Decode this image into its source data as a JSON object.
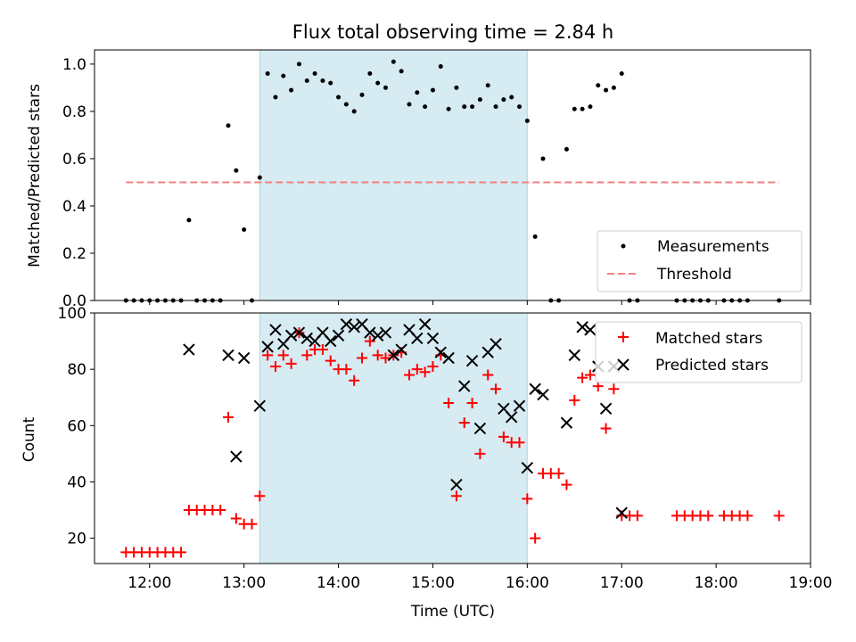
{
  "chart_data": [
    {
      "type": "scatter",
      "title": "Flux total observing time = 2.84 h",
      "xlabel": "",
      "ylabel": "Matched/Predicted stars",
      "xlim": [
        "11:25",
        "19:00"
      ],
      "ylim": [
        0,
        1.06
      ],
      "yticks": [
        "0.0",
        "0.2",
        "0.4",
        "0.6",
        "0.8",
        "1.0"
      ],
      "shaded_region": {
        "start": "13:10",
        "end": "16:00",
        "color": "#add8e6"
      },
      "legend": {
        "position": "bottom-right",
        "entries": [
          "Measurements",
          "Threshold"
        ]
      },
      "threshold": {
        "name": "Threshold",
        "y": 0.5,
        "x_start": "11:45",
        "x_end": "18:40",
        "color": "#f08080"
      },
      "series": [
        {
          "name": "Measurements",
          "color": "#000000",
          "points": [
            [
              "11:45",
              0
            ],
            [
              "11:50",
              0
            ],
            [
              "11:55",
              0
            ],
            [
              "12:00",
              0
            ],
            [
              "12:05",
              0
            ],
            [
              "12:10",
              0
            ],
            [
              "12:15",
              0
            ],
            [
              "12:20",
              0
            ],
            [
              "12:25",
              0.34
            ],
            [
              "12:30",
              0
            ],
            [
              "12:35",
              0
            ],
            [
              "12:40",
              0
            ],
            [
              "12:45",
              0
            ],
            [
              "12:50",
              0.74
            ],
            [
              "12:55",
              0.55
            ],
            [
              "13:00",
              0.3
            ],
            [
              "13:05",
              0
            ],
            [
              "13:10",
              0.52
            ],
            [
              "13:15",
              0.96
            ],
            [
              "13:20",
              0.86
            ],
            [
              "13:25",
              0.95
            ],
            [
              "13:30",
              0.89
            ],
            [
              "13:35",
              1.0
            ],
            [
              "13:40",
              0.93
            ],
            [
              "13:45",
              0.96
            ],
            [
              "13:50",
              0.93
            ],
            [
              "13:55",
              0.92
            ],
            [
              "14:00",
              0.86
            ],
            [
              "14:05",
              0.83
            ],
            [
              "14:10",
              0.8
            ],
            [
              "14:15",
              0.87
            ],
            [
              "14:20",
              0.96
            ],
            [
              "14:25",
              0.92
            ],
            [
              "14:30",
              0.9
            ],
            [
              "14:35",
              1.01
            ],
            [
              "14:40",
              0.97
            ],
            [
              "14:45",
              0.83
            ],
            [
              "14:50",
              0.88
            ],
            [
              "14:55",
              0.82
            ],
            [
              "15:00",
              0.89
            ],
            [
              "15:05",
              0.99
            ],
            [
              "15:10",
              0.81
            ],
            [
              "15:15",
              0.9
            ],
            [
              "15:20",
              0.82
            ],
            [
              "15:25",
              0.82
            ],
            [
              "15:30",
              0.85
            ],
            [
              "15:35",
              0.91
            ],
            [
              "15:40",
              0.82
            ],
            [
              "15:45",
              0.85
            ],
            [
              "15:50",
              0.86
            ],
            [
              "15:55",
              0.82
            ],
            [
              "16:00",
              0.76
            ],
            [
              "16:05",
              0.27
            ],
            [
              "16:10",
              0.6
            ],
            [
              "16:15",
              0
            ],
            [
              "16:20",
              0
            ],
            [
              "16:25",
              0.64
            ],
            [
              "16:30",
              0.81
            ],
            [
              "16:35",
              0.81
            ],
            [
              "16:40",
              0.82
            ],
            [
              "16:45",
              0.91
            ],
            [
              "16:50",
              0.89
            ],
            [
              "16:55",
              0.9
            ],
            [
              "17:00",
              0.96
            ],
            [
              "17:05",
              0
            ],
            [
              "17:10",
              0
            ],
            [
              "17:35",
              0
            ],
            [
              "17:40",
              0
            ],
            [
              "17:45",
              0
            ],
            [
              "17:50",
              0
            ],
            [
              "17:55",
              0
            ],
            [
              "18:05",
              0
            ],
            [
              "18:10",
              0
            ],
            [
              "18:15",
              0
            ],
            [
              "18:20",
              0
            ],
            [
              "18:40",
              0
            ]
          ]
        }
      ]
    },
    {
      "type": "scatter",
      "title": "",
      "xlabel": "Time (UTC)",
      "ylabel": "Count",
      "xlim": [
        "11:25",
        "19:00"
      ],
      "ylim": [
        11,
        100
      ],
      "xticks": [
        "12:00",
        "13:00",
        "14:00",
        "15:00",
        "16:00",
        "17:00",
        "18:00",
        "19:00"
      ],
      "yticks": [
        "20",
        "40",
        "60",
        "80",
        "100"
      ],
      "shaded_region": {
        "start": "13:10",
        "end": "16:00",
        "color": "#add8e6"
      },
      "legend": {
        "position": "top-right",
        "entries": [
          "Matched stars",
          "Predicted stars"
        ]
      },
      "series": [
        {
          "name": "Matched stars",
          "marker": "plus",
          "color": "#ff0000",
          "points": [
            [
              "11:45",
              15
            ],
            [
              "11:50",
              15
            ],
            [
              "11:55",
              15
            ],
            [
              "12:00",
              15
            ],
            [
              "12:05",
              15
            ],
            [
              "12:10",
              15
            ],
            [
              "12:15",
              15
            ],
            [
              "12:20",
              15
            ],
            [
              "12:25",
              30
            ],
            [
              "12:30",
              30
            ],
            [
              "12:35",
              30
            ],
            [
              "12:40",
              30
            ],
            [
              "12:45",
              30
            ],
            [
              "12:50",
              63
            ],
            [
              "12:55",
              27
            ],
            [
              "13:00",
              25
            ],
            [
              "13:05",
              25
            ],
            [
              "13:10",
              35
            ],
            [
              "13:15",
              85
            ],
            [
              "13:20",
              81
            ],
            [
              "13:25",
              85
            ],
            [
              "13:30",
              82
            ],
            [
              "13:35",
              93
            ],
            [
              "13:40",
              85
            ],
            [
              "13:45",
              87
            ],
            [
              "13:50",
              87
            ],
            [
              "13:55",
              83
            ],
            [
              "14:00",
              80
            ],
            [
              "14:05",
              80
            ],
            [
              "14:10",
              76
            ],
            [
              "14:15",
              84
            ],
            [
              "14:20",
              90
            ],
            [
              "14:25",
              85
            ],
            [
              "14:30",
              84
            ],
            [
              "14:35",
              85
            ],
            [
              "14:40",
              86
            ],
            [
              "14:45",
              78
            ],
            [
              "14:50",
              80
            ],
            [
              "14:55",
              79
            ],
            [
              "15:00",
              81
            ],
            [
              "15:05",
              85
            ],
            [
              "15:10",
              68
            ],
            [
              "15:15",
              35
            ],
            [
              "15:20",
              61
            ],
            [
              "15:25",
              68
            ],
            [
              "15:30",
              50
            ],
            [
              "15:35",
              78
            ],
            [
              "15:40",
              73
            ],
            [
              "15:45",
              56
            ],
            [
              "15:50",
              54
            ],
            [
              "15:55",
              54
            ],
            [
              "16:00",
              34
            ],
            [
              "16:05",
              20
            ],
            [
              "16:10",
              43
            ],
            [
              "16:15",
              43
            ],
            [
              "16:20",
              43
            ],
            [
              "16:25",
              39
            ],
            [
              "16:30",
              69
            ],
            [
              "16:35",
              77
            ],
            [
              "16:40",
              78
            ],
            [
              "16:45",
              74
            ],
            [
              "16:50",
              59
            ],
            [
              "16:55",
              73
            ],
            [
              "17:00",
              28
            ],
            [
              "17:05",
              28
            ],
            [
              "17:10",
              28
            ],
            [
              "17:35",
              28
            ],
            [
              "17:40",
              28
            ],
            [
              "17:45",
              28
            ],
            [
              "17:50",
              28
            ],
            [
              "17:55",
              28
            ],
            [
              "18:05",
              28
            ],
            [
              "18:10",
              28
            ],
            [
              "18:15",
              28
            ],
            [
              "18:20",
              28
            ],
            [
              "18:40",
              28
            ]
          ]
        },
        {
          "name": "Predicted stars",
          "marker": "x",
          "color": "#000000",
          "points": [
            [
              "12:25",
              87
            ],
            [
              "12:50",
              85
            ],
            [
              "12:55",
              49
            ],
            [
              "13:00",
              84
            ],
            [
              "13:10",
              67
            ],
            [
              "13:15",
              88
            ],
            [
              "13:20",
              94
            ],
            [
              "13:25",
              89
            ],
            [
              "13:30",
              92
            ],
            [
              "13:35",
              93
            ],
            [
              "13:40",
              91
            ],
            [
              "13:45",
              90
            ],
            [
              "13:50",
              93
            ],
            [
              "13:55",
              90
            ],
            [
              "14:00",
              92
            ],
            [
              "14:05",
              96
            ],
            [
              "14:10",
              95
            ],
            [
              "14:15",
              96
            ],
            [
              "14:20",
              93
            ],
            [
              "14:25",
              92
            ],
            [
              "14:30",
              93
            ],
            [
              "14:35",
              85
            ],
            [
              "14:40",
              87
            ],
            [
              "14:45",
              94
            ],
            [
              "14:50",
              91
            ],
            [
              "14:55",
              96
            ],
            [
              "15:00",
              91
            ],
            [
              "15:05",
              86
            ],
            [
              "15:10",
              84
            ],
            [
              "15:15",
              39
            ],
            [
              "15:20",
              74
            ],
            [
              "15:25",
              83
            ],
            [
              "15:30",
              59
            ],
            [
              "15:35",
              86
            ],
            [
              "15:40",
              89
            ],
            [
              "15:45",
              66
            ],
            [
              "15:50",
              63
            ],
            [
              "15:55",
              67
            ],
            [
              "16:00",
              45
            ],
            [
              "16:05",
              73
            ],
            [
              "16:10",
              71
            ],
            [
              "16:25",
              61
            ],
            [
              "16:30",
              85
            ],
            [
              "16:35",
              95
            ],
            [
              "16:40",
              94
            ],
            [
              "16:45",
              81
            ],
            [
              "16:50",
              66
            ],
            [
              "16:55",
              81
            ],
            [
              "17:00",
              29
            ]
          ]
        }
      ]
    }
  ]
}
